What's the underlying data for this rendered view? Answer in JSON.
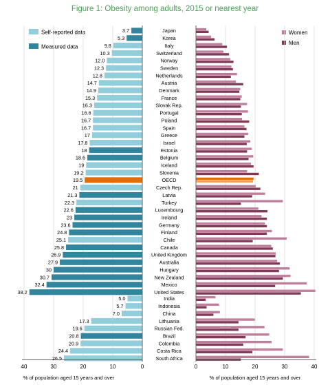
{
  "chart_data": {
    "type": "bar",
    "title": "Figure 1: Obesity among adults, 2015 or nearest year",
    "left_panel": {
      "legend": [
        {
          "name": "Self-reported data",
          "color": "#92cddc"
        },
        {
          "name": "Measured data",
          "color": "#31859c"
        }
      ],
      "highlight_color": "#e36c0a",
      "xlabel": "% of population aged 15 years and over",
      "xlim": [
        0,
        40
      ],
      "ticks": [
        "0",
        "10",
        "20",
        "30",
        "40"
      ]
    },
    "right_panel": {
      "legend": [
        {
          "name": "Women",
          "color": "#c0809d"
        },
        {
          "name": "Men",
          "color": "#7f3b55"
        }
      ],
      "xlabel": "% of population aged 15 years and over",
      "xlim": [
        0,
        40
      ],
      "ticks": [
        "0",
        "10",
        "20",
        "30",
        "40"
      ]
    },
    "groups": [
      {
        "rows": [
          {
            "country": "Japan",
            "total": 3.7,
            "label": "3.7",
            "type": "measured",
            "women": 3.5,
            "men": 4.3
          },
          {
            "country": "Korea",
            "total": 5.3,
            "label": "5.3",
            "type": "measured",
            "women": 5.1,
            "men": 6.3
          },
          {
            "country": "Italy",
            "total": 9.8,
            "label": "9.8",
            "type": "self",
            "women": 8.9,
            "men": 10.5
          },
          {
            "country": "Switzerland",
            "total": 10.3,
            "label": "10.3",
            "type": "self",
            "women": 9.3,
            "men": 11.2
          },
          {
            "country": "Norway",
            "total": 12.0,
            "label": "12.0",
            "type": "self",
            "women": 11.6,
            "men": 12.7
          },
          {
            "country": "Sweden",
            "total": 12.3,
            "label": "12.3",
            "type": "self",
            "women": 12.0,
            "men": 12.5
          },
          {
            "country": "Netherlands",
            "total": 12.8,
            "label": "12.8",
            "type": "self",
            "women": 13.9,
            "men": 11.8
          },
          {
            "country": "Austria",
            "total": 14.7,
            "label": "14.7",
            "type": "self",
            "women": 13.5,
            "men": 16.0
          },
          {
            "country": "Denmark",
            "total": 14.9,
            "label": "14.9",
            "type": "self",
            "women": 15.0,
            "men": 14.7
          },
          {
            "country": "France",
            "total": 15.3,
            "label": "15.3",
            "type": "self",
            "women": 15.5,
            "men": 15.0
          },
          {
            "country": "Slovak Rep.",
            "total": 16.3,
            "label": "16.3",
            "type": "self",
            "women": 17.3,
            "men": 15.2
          },
          {
            "country": "Portugal",
            "total": 16.6,
            "label": "16.6",
            "type": "self",
            "women": 17.6,
            "men": 15.5
          },
          {
            "country": "Poland",
            "total": 16.7,
            "label": "16.7",
            "type": "self",
            "women": 15.6,
            "men": 18.0
          },
          {
            "country": "Spain",
            "total": 16.7,
            "label": "16.7",
            "type": "self",
            "women": 16.4,
            "men": 17.1
          },
          {
            "country": "Greece",
            "total": 17,
            "label": "17",
            "type": "self",
            "women": 17.7,
            "men": 16.4
          },
          {
            "country": "Israel",
            "total": 17.8,
            "label": "17.8",
            "type": "self",
            "women": 18.4,
            "men": 17.2
          },
          {
            "country": "Estonia",
            "total": 18,
            "label": "18",
            "type": "measured",
            "women": 18.9,
            "men": 17.3
          },
          {
            "country": "Belgium",
            "total": 18.6,
            "label": "18.6",
            "type": "measured",
            "women": 19.4,
            "men": 17.8
          },
          {
            "country": "Iceland",
            "total": 19,
            "label": "19",
            "type": "self",
            "women": 18.6,
            "men": 19.5
          },
          {
            "country": "Slovenia",
            "total": 19.2,
            "label": "19.2",
            "type": "self",
            "women": 17.3,
            "men": 21.3
          },
          {
            "country": "OECD",
            "total": 19.5,
            "label": "19.5",
            "type": "oecd",
            "women": 19.5,
            "men": 19.3
          },
          {
            "country": "Czech Rep.",
            "total": 21,
            "label": "21",
            "type": "self",
            "women": 20.2,
            "men": 21.8
          },
          {
            "country": "Latvia",
            "total": 21.3,
            "label": "21.3",
            "type": "measured",
            "women": 23.4,
            "men": 19.0
          },
          {
            "country": "Turkey",
            "total": 22.3,
            "label": "22.3",
            "type": "self",
            "women": 29.4,
            "men": 15.2
          },
          {
            "country": "Luxembourg",
            "total": 22.6,
            "label": "22.6",
            "type": "measured",
            "women": 21.1,
            "men": 24.2
          },
          {
            "country": "Ireland",
            "total": 23,
            "label": "23",
            "type": "measured",
            "women": 22.2,
            "men": 24.0
          },
          {
            "country": "Germany",
            "total": 23.6,
            "label": "23.6",
            "type": "measured",
            "women": 23.3,
            "men": 24.0
          },
          {
            "country": "Finland",
            "total": 24.8,
            "label": "24.8",
            "type": "measured",
            "women": 25.7,
            "men": 24.0
          },
          {
            "country": "Chile",
            "total": 25.1,
            "label": "25.1",
            "type": "self",
            "women": 30.7,
            "men": 19.2
          },
          {
            "country": "Canada",
            "total": 25.8,
            "label": "25.8",
            "type": "measured",
            "women": 25.5,
            "men": 26.0
          },
          {
            "country": "United Kingdom",
            "total": 26.9,
            "label": "26.9",
            "type": "measured",
            "women": 27.0,
            "men": 26.9
          },
          {
            "country": "Australia",
            "total": 27.9,
            "label": "27.9",
            "type": "measured",
            "women": 27.5,
            "men": 28.4
          },
          {
            "country": "Hungary",
            "total": 30,
            "label": "30",
            "type": "measured",
            "women": 31.7,
            "men": 28.1
          },
          {
            "country": "New Zealand",
            "total": 30.7,
            "label": "30.7",
            "type": "measured",
            "women": 32.0,
            "men": 29.4
          },
          {
            "country": "Mexico",
            "total": 32.4,
            "label": "32.4",
            "type": "measured",
            "women": 37.5,
            "men": 26.8
          },
          {
            "country": "United States",
            "total": 38.2,
            "label": "38.2",
            "type": "measured",
            "women": 40.4,
            "men": 35.5
          }
        ]
      },
      {
        "rows": [
          {
            "country": "India",
            "total": 5.0,
            "label": "5.0",
            "type": "self",
            "women": 6.6,
            "men": 3.3
          },
          {
            "country": "Indonesia",
            "total": 5.7,
            "label": "5.7",
            "type": "self",
            "women": 7.8,
            "men": 3.6
          },
          {
            "country": "China",
            "total": 7.0,
            "label": "7.0",
            "type": "self",
            "women": 8.1,
            "men": 5.9
          },
          {
            "country": "Lithuania",
            "total": 17.3,
            "label": "17.3",
            "type": "self",
            "women": 19.9,
            "men": 14.4
          },
          {
            "country": "Russian Fed.",
            "total": 19.6,
            "label": "19.6",
            "type": "self",
            "women": 23.2,
            "men": 14.4
          },
          {
            "country": "Brazil",
            "total": 20.8,
            "label": "20.8",
            "type": "measured",
            "women": 24.8,
            "men": 16.8
          },
          {
            "country": "Colombia",
            "total": 20.9,
            "label": "20.9",
            "type": "self",
            "women": 25.6,
            "men": 16.0
          },
          {
            "country": "Costa Rica",
            "total": 24.4,
            "label": "24.4",
            "type": "self",
            "women": 29.4,
            "men": 19.1
          },
          {
            "country": "South Africa",
            "total": 26.5,
            "label": "26.5",
            "type": "self",
            "women": 38.3,
            "men": 15.2
          }
        ]
      }
    ]
  }
}
